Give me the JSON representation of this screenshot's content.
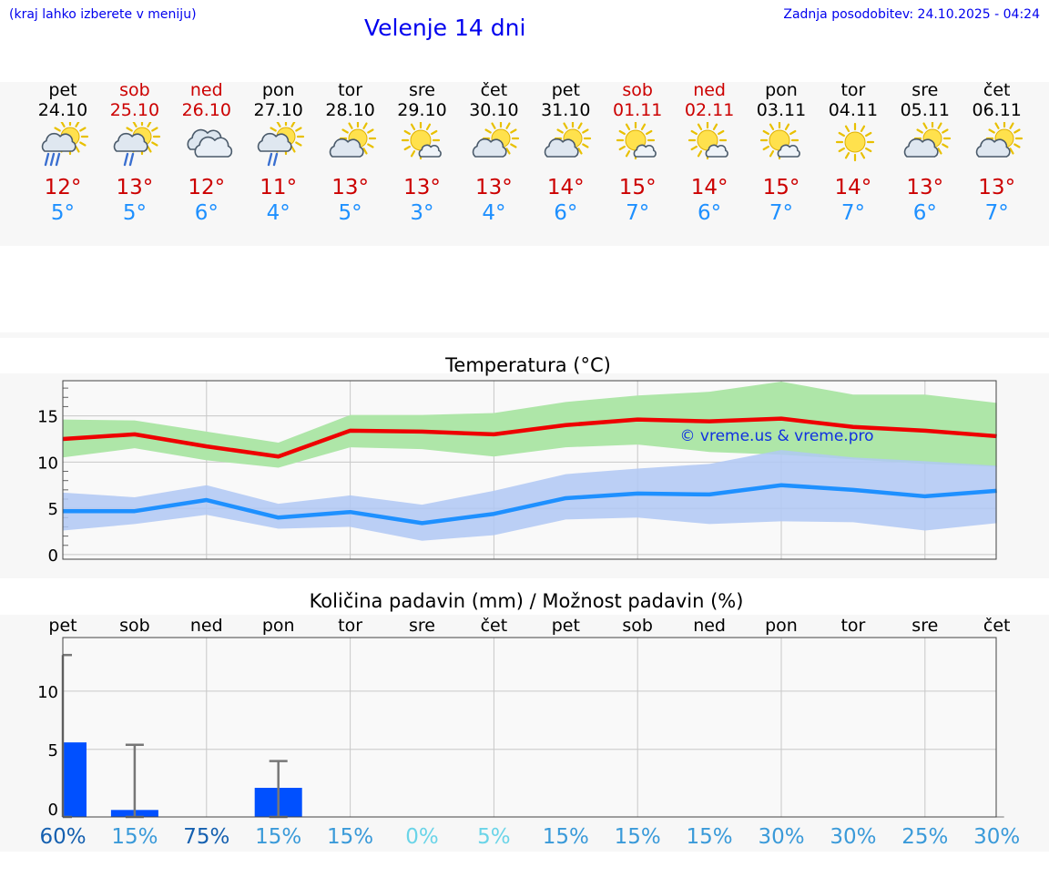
{
  "header": {
    "note": "(kraj lahko izberete v meniju)",
    "title": "Velenje 14 dni",
    "updated": "Zadnja posodobitev: 24.10.2025 - 04:24"
  },
  "days": [
    {
      "name": "pet",
      "date": "24.10",
      "weekend": false,
      "icon": "sun-cloud-rain-icon",
      "tmax": "12°",
      "tmin": "5°"
    },
    {
      "name": "sob",
      "date": "25.10",
      "weekend": true,
      "icon": "sun-cloud-drizzle-icon",
      "tmax": "13°",
      "tmin": "5°"
    },
    {
      "name": "ned",
      "date": "26.10",
      "weekend": true,
      "icon": "overcast-icon",
      "tmax": "12°",
      "tmin": "6°"
    },
    {
      "name": "pon",
      "date": "27.10",
      "weekend": false,
      "icon": "sun-cloud-drizzle-icon",
      "tmax": "11°",
      "tmin": "4°"
    },
    {
      "name": "tor",
      "date": "28.10",
      "weekend": false,
      "icon": "sun-cloud-icon",
      "tmax": "13°",
      "tmin": "5°"
    },
    {
      "name": "sre",
      "date": "29.10",
      "weekend": false,
      "icon": "sun-small-cloud-icon",
      "tmax": "13°",
      "tmin": "3°"
    },
    {
      "name": "čet",
      "date": "30.10",
      "weekend": false,
      "icon": "sun-cloud-icon",
      "tmax": "13°",
      "tmin": "4°"
    },
    {
      "name": "pet",
      "date": "31.10",
      "weekend": false,
      "icon": "sun-cloud-icon",
      "tmax": "14°",
      "tmin": "6°"
    },
    {
      "name": "sob",
      "date": "01.11",
      "weekend": true,
      "icon": "sun-small-cloud-icon",
      "tmax": "15°",
      "tmin": "7°"
    },
    {
      "name": "ned",
      "date": "02.11",
      "weekend": true,
      "icon": "sun-small-cloud-icon",
      "tmax": "14°",
      "tmin": "6°"
    },
    {
      "name": "pon",
      "date": "03.11",
      "weekend": false,
      "icon": "sun-small-cloud-icon",
      "tmax": "15°",
      "tmin": "7°"
    },
    {
      "name": "tor",
      "date": "04.11",
      "weekend": false,
      "icon": "sun-icon",
      "tmax": "14°",
      "tmin": "7°"
    },
    {
      "name": "sre",
      "date": "05.11",
      "weekend": false,
      "icon": "sun-cloud-icon",
      "tmax": "13°",
      "tmin": "6°"
    },
    {
      "name": "čet",
      "date": "06.11",
      "weekend": false,
      "icon": "sun-cloud-icon",
      "tmax": "13°",
      "tmin": "7°"
    }
  ],
  "colors": {
    "max_line": "#ee0000",
    "max_band": "#aee6a8",
    "min_line": "#1e90ff",
    "min_band": "#b0c8f4",
    "bar": "#0050ff",
    "grid": "#c8c8c8",
    "precip_pct_dark": "#1560b0",
    "precip_pct_mid": "#3a9ad9",
    "precip_pct_light": "#6ad4e8"
  },
  "chart_data": [
    {
      "type": "line",
      "title": "Temperatura (°C)",
      "watermark": "© vreme.us & vreme.pro",
      "x": [
        "24.10",
        "25.10",
        "26.10",
        "27.10",
        "28.10",
        "29.10",
        "30.10",
        "31.10",
        "01.11",
        "02.11",
        "03.11",
        "04.11",
        "05.11",
        "06.11"
      ],
      "ylim": [
        -0.5,
        18.8
      ],
      "yticks": [
        0,
        5,
        10,
        15
      ],
      "series": [
        {
          "name": "max",
          "values": [
            12.5,
            13.0,
            11.7,
            10.6,
            13.4,
            13.3,
            13.0,
            14.0,
            14.6,
            14.4,
            14.7,
            13.8,
            13.4,
            12.8
          ],
          "band_low": [
            10.5,
            11.5,
            10.2,
            9.4,
            11.6,
            11.4,
            10.6,
            11.6,
            11.9,
            11.1,
            10.8,
            10.3,
            9.8,
            9.5
          ],
          "band_high": [
            14.6,
            14.5,
            13.3,
            12.1,
            15.1,
            15.1,
            15.3,
            16.5,
            17.2,
            17.6,
            18.7,
            17.3,
            17.3,
            16.4
          ]
        },
        {
          "name": "min",
          "values": [
            4.7,
            4.7,
            5.9,
            4.0,
            4.6,
            3.4,
            4.4,
            6.1,
            6.6,
            6.5,
            7.5,
            7.0,
            6.3,
            6.9
          ],
          "band_low": [
            2.6,
            3.3,
            4.3,
            2.8,
            3.0,
            1.5,
            2.1,
            3.8,
            4.0,
            3.3,
            3.6,
            3.5,
            2.6,
            3.4
          ],
          "band_high": [
            6.7,
            6.2,
            7.5,
            5.5,
            6.4,
            5.4,
            6.9,
            8.7,
            9.3,
            9.8,
            11.3,
            10.5,
            10.1,
            9.6
          ]
        }
      ]
    },
    {
      "type": "bar",
      "title": "Količina padavin (mm) / Možnost padavin (%)",
      "categories": [
        "pet",
        "sob",
        "ned",
        "pon",
        "tor",
        "sre",
        "čet",
        "pet",
        "sob",
        "ned",
        "pon",
        "tor",
        "sre",
        "čet"
      ],
      "ylim": [
        -0.8,
        14.6
      ],
      "yticks": [
        0,
        5,
        10
      ],
      "values": [
        6.4,
        0.6,
        0,
        2.5,
        0,
        0,
        0,
        0,
        0,
        0,
        0,
        0,
        0,
        0
      ],
      "error_high": [
        13.9,
        6.2,
        0,
        4.8,
        0,
        0,
        0,
        0,
        0,
        0,
        0,
        0,
        0,
        0
      ],
      "probability": [
        "60%",
        "15%",
        "75%",
        "15%",
        "15%",
        "0%",
        "5%",
        "15%",
        "15%",
        "15%",
        "30%",
        "30%",
        "25%",
        "30%"
      ]
    }
  ]
}
